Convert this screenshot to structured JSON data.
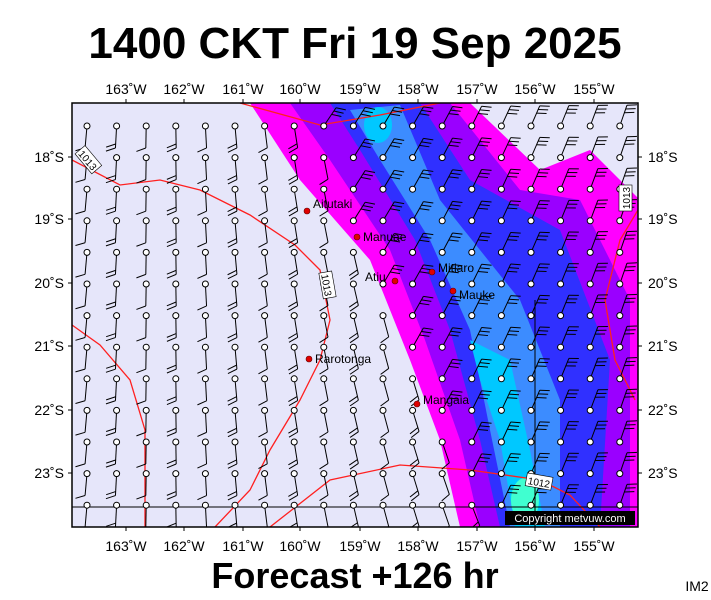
{
  "header": {
    "title": "1400 CKT Fri 19 Sep 2025"
  },
  "footer": {
    "forecast": "Forecast +126 hr",
    "image_id": "IM2"
  },
  "axes": {
    "lon_labels": [
      "163˚W",
      "162˚W",
      "161˚W",
      "160˚W",
      "159˚W",
      "158˚W",
      "157˚W",
      "156˚W",
      "155˚W"
    ],
    "lat_labels": [
      "18˚S",
      "19˚S",
      "20˚S",
      "21˚S",
      "22˚S",
      "23˚S"
    ]
  },
  "places": [
    "Aitutaki",
    "Manuae",
    "Mitiaro",
    "Atiu",
    "Mauke",
    "Rarotonga",
    "Mangaia"
  ],
  "isobar_labels": [
    "1013",
    "1013",
    "1012",
    "1013"
  ],
  "copyright": "Copyright metvuw.com"
}
